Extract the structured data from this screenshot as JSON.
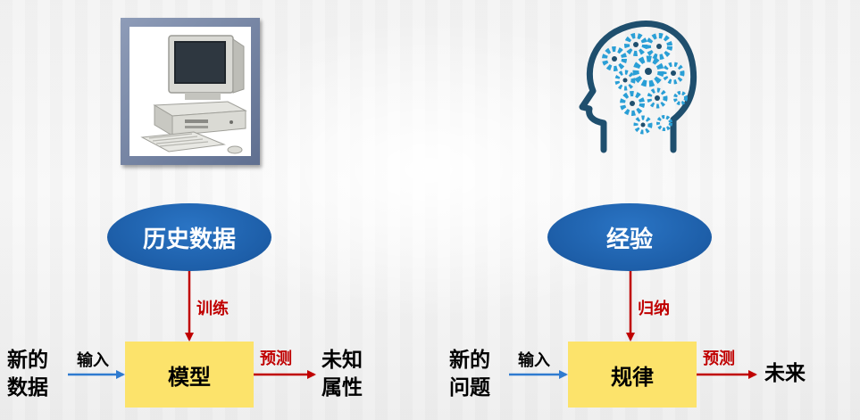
{
  "left": {
    "source_label": "历史数据",
    "process_label": "训练",
    "box_label": "模型",
    "input_label": "输入",
    "output_arrow_label": "预测",
    "input_text_line1": "新的",
    "input_text_line2": "数据",
    "output_text_line1": "未知",
    "output_text_line2": "属性"
  },
  "right": {
    "source_label": "经验",
    "process_label": "归纳",
    "box_label": "规律",
    "input_label": "输入",
    "output_arrow_label": "预测",
    "input_text_line1": "新的",
    "input_text_line2": "问题",
    "output_text": "未来"
  },
  "colors": {
    "ellipse": "#1d5ea8",
    "box": "#fce36b",
    "red": "#c00000",
    "blue_arrow": "#2f7bd0",
    "head": "#1f4f6e",
    "gear": "#2a9fd6"
  },
  "icons": {
    "left_image": "desktop-computer-icon",
    "right_image": "brain-gears-head-icon"
  }
}
